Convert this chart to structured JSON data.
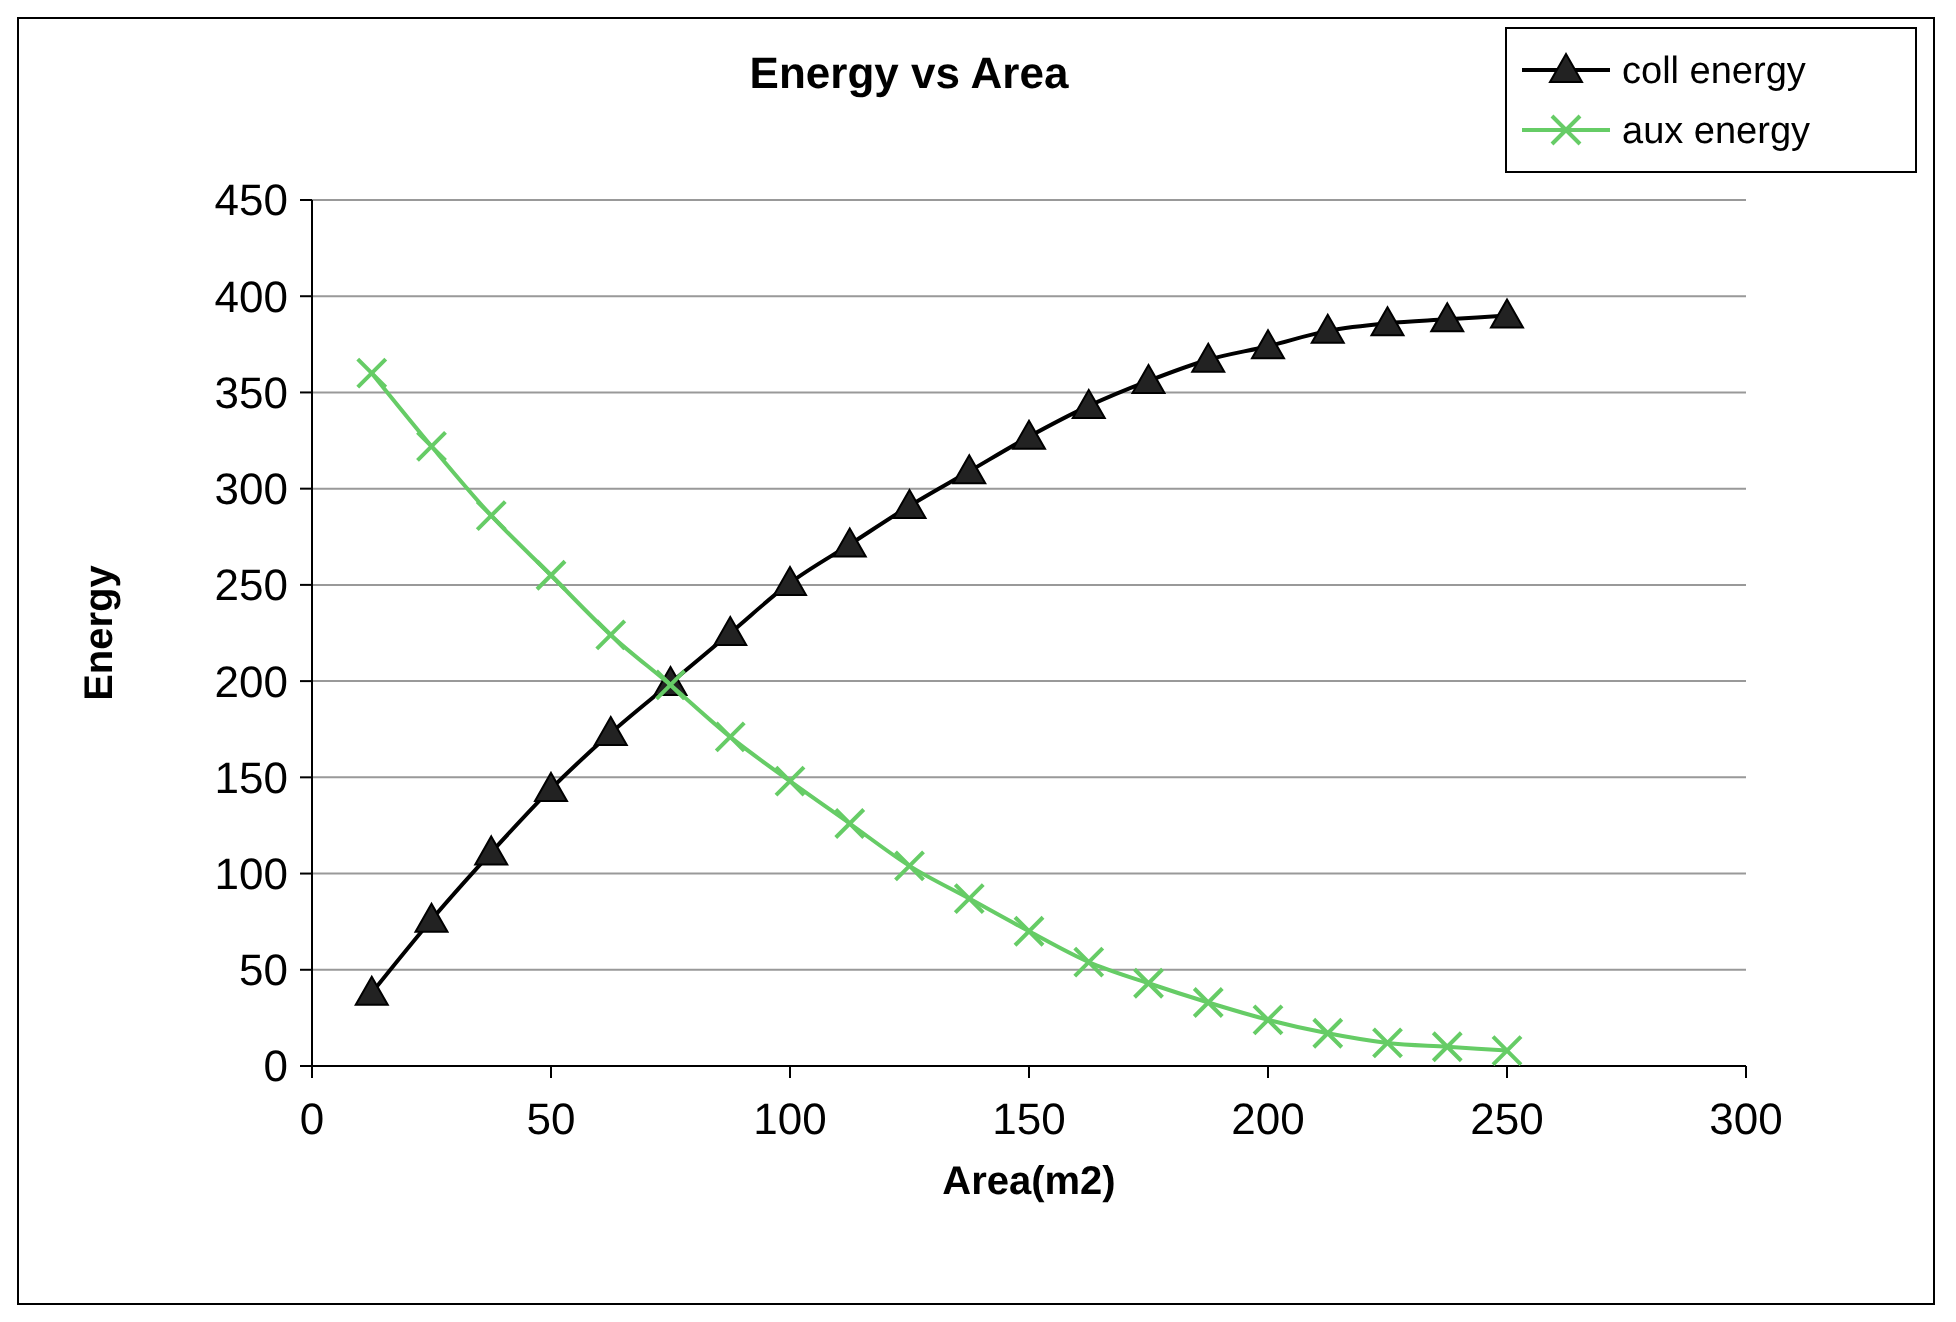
{
  "chart_data": {
    "type": "line",
    "title": "Energy vs Area",
    "xlabel": "Area(m2)",
    "ylabel": "Energy",
    "x": [
      12.5,
      25,
      37.5,
      50,
      62.5,
      75,
      87.5,
      100,
      112.5,
      125,
      137.5,
      150,
      162.5,
      175,
      187.5,
      200,
      212.5,
      225,
      237.5,
      250
    ],
    "series": [
      {
        "name": "coll energy",
        "color": "#000000",
        "marker": "triangle",
        "values": [
          38,
          76,
          111,
          144,
          173,
          199,
          225,
          251,
          271,
          291,
          309,
          327,
          343,
          356,
          367,
          374,
          382,
          386,
          388,
          390
        ]
      },
      {
        "name": "aux energy",
        "color": "#66cc66",
        "marker": "cross",
        "values": [
          360,
          322,
          286,
          255,
          224,
          198,
          171,
          148,
          126,
          104,
          87,
          70,
          54,
          43,
          33,
          24,
          17,
          12,
          10,
          8
        ]
      }
    ],
    "xlim": [
      0,
      300
    ],
    "xticks": [
      0,
      50,
      100,
      150,
      200,
      250,
      300
    ],
    "ylim": [
      0,
      450
    ],
    "yticks": [
      0,
      50,
      100,
      150,
      200,
      250,
      300,
      350,
      400,
      450
    ],
    "grid": "y",
    "legend": "top right"
  }
}
